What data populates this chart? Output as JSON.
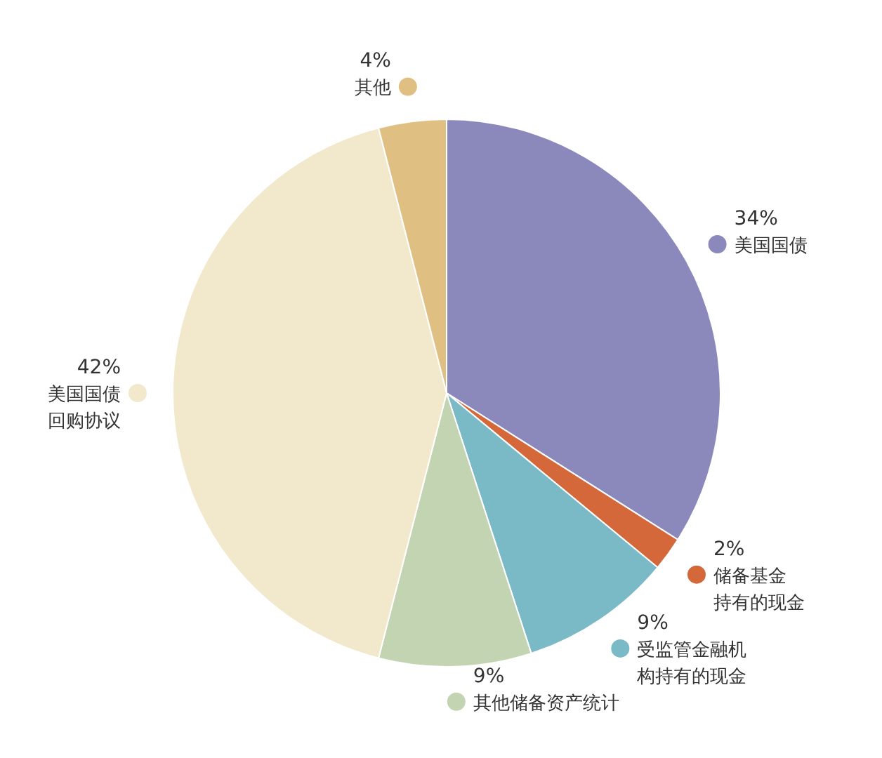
{
  "chart_data": {
    "type": "pie",
    "categories": [
      "美国国债",
      "储备基金持有的现金",
      "受监管金融机构持有的现金",
      "其他储备资产统计",
      "美国国债回购协议",
      "其他"
    ],
    "legend": "right",
    "values": [
      34,
      2,
      9,
      9,
      42,
      4
    ],
    "colors": [
      "#8b89bc",
      "#d4683a",
      "#79bac6",
      "#c3d4b2",
      "#f2e8cc",
      "#e0bf83"
    ],
    "value_labels": [
      "34%",
      "2%",
      "9%",
      "9%",
      "42%",
      "4%"
    ]
  }
}
